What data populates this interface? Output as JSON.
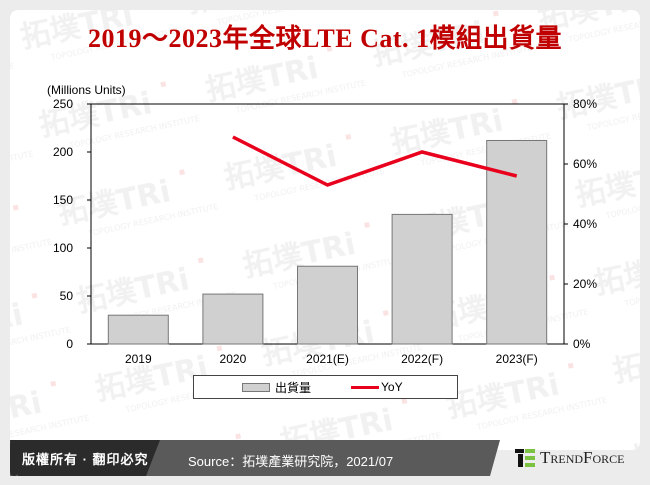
{
  "title": "2019～2023年全球LTE Cat. 1模組出貨量",
  "unit_label": "(Millions Units)",
  "legend": {
    "bar_label": "出貨量",
    "line_label": "YoY"
  },
  "footer": {
    "copyright": "版權所有 · 翻印必究",
    "source": "Source：拓墣產業研究院，2021/07",
    "brand": "TrendForce"
  },
  "colors": {
    "title": "#c00000",
    "bar_fill": "#d0d0d0",
    "bar_stroke": "#777777",
    "line": "#e8001c",
    "footer_dark": "#2b2b2b",
    "footer_gray": "#5a5a5a",
    "brand_green": "#7cc242"
  },
  "chart_data": {
    "type": "bar",
    "title": "2019～2023年全球LTE Cat. 1模組出貨量",
    "categories": [
      "2019",
      "2020",
      "2021(E)",
      "2022(F)",
      "2023(F)"
    ],
    "series": [
      {
        "name": "出貨量",
        "type": "bar",
        "axis": "left",
        "values": [
          30,
          52,
          81,
          135,
          212
        ]
      },
      {
        "name": "YoY",
        "type": "line",
        "axis": "right",
        "values": [
          null,
          0.69,
          0.53,
          0.64,
          0.56
        ]
      }
    ],
    "xlabel": "",
    "ylabel": "(Millions Units)",
    "ylim": [
      0,
      250
    ],
    "yticks": [
      "0",
      "50",
      "100",
      "150",
      "200",
      "250"
    ],
    "y2lim": [
      0,
      0.8
    ],
    "y2ticks": [
      "0%",
      "20%",
      "40%",
      "60%",
      "80%"
    ],
    "grid": false,
    "legend_position": "bottom"
  }
}
